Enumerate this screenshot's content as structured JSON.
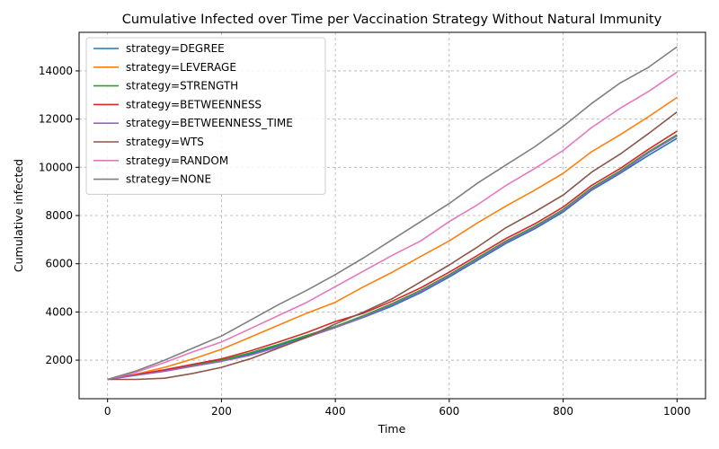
{
  "chart_data": {
    "type": "line",
    "title": "Cumulative Infected over Time per Vaccination Strategy Without Natural Immunity",
    "xlabel": "Time",
    "ylabel": "Cumulative infected",
    "xlim": [
      -50,
      1050
    ],
    "ylim": [
      400,
      15600
    ],
    "xticks": [
      0,
      200,
      400,
      600,
      800,
      1000
    ],
    "yticks": [
      2000,
      4000,
      6000,
      8000,
      10000,
      12000,
      14000
    ],
    "grid": true,
    "legend_position": "top-left",
    "x": [
      0,
      50,
      100,
      150,
      200,
      250,
      300,
      350,
      400,
      450,
      500,
      550,
      600,
      650,
      700,
      750,
      800,
      850,
      900,
      950,
      1000
    ],
    "series": [
      {
        "name": "strategy=DEGREE",
        "color": "#1f77b4",
        "values": [
          1200,
          1380,
          1560,
          1760,
          1960,
          2250,
          2600,
          2980,
          3350,
          3780,
          4250,
          4800,
          5450,
          6150,
          6850,
          7450,
          8150,
          9050,
          9750,
          10500,
          11200
        ]
      },
      {
        "name": "strategy=LEVERAGE",
        "color": "#ff7f0e",
        "values": [
          1200,
          1420,
          1700,
          2050,
          2450,
          2950,
          3450,
          3950,
          4400,
          5050,
          5650,
          6300,
          6950,
          7700,
          8400,
          9050,
          9750,
          10650,
          11350,
          12100,
          12900
        ]
      },
      {
        "name": "strategy=STRENGTH",
        "color": "#2ca02c",
        "values": [
          1200,
          1390,
          1580,
          1800,
          2000,
          2300,
          2650,
          3030,
          3400,
          3850,
          4350,
          4900,
          5550,
          6250,
          6950,
          7550,
          8250,
          9150,
          9850,
          10650,
          11350
        ]
      },
      {
        "name": "strategy=BETWEENNESS",
        "color": "#d62728",
        "values": [
          1200,
          1400,
          1600,
          1830,
          2050,
          2380,
          2750,
          3150,
          3600,
          3950,
          4450,
          5000,
          5650,
          6350,
          7050,
          7650,
          8350,
          9250,
          9950,
          10750,
          11500
        ]
      },
      {
        "name": "strategy=BETWEENNESS_TIME",
        "color": "#9467bd",
        "values": [
          1200,
          1370,
          1540,
          1750,
          1950,
          2200,
          2550,
          2950,
          3350,
          3800,
          4300,
          4850,
          5500,
          6200,
          6900,
          7500,
          8200,
          9100,
          9800,
          10600,
          11300
        ]
      },
      {
        "name": "strategy=WTS",
        "color": "#8c564b",
        "values": [
          1200,
          1200,
          1250,
          1450,
          1700,
          2050,
          2500,
          2950,
          3500,
          4000,
          4550,
          5250,
          5950,
          6700,
          7500,
          8150,
          8850,
          9800,
          10550,
          11400,
          12300
        ]
      },
      {
        "name": "strategy=RANDOM",
        "color": "#e377c2",
        "values": [
          1200,
          1500,
          1900,
          2350,
          2750,
          3300,
          3850,
          4400,
          5050,
          5700,
          6350,
          6950,
          7750,
          8450,
          9250,
          9950,
          10700,
          11650,
          12450,
          13150,
          13950
        ]
      },
      {
        "name": "strategy=NONE",
        "color": "#7f7f7f",
        "values": [
          1200,
          1550,
          2000,
          2500,
          3000,
          3650,
          4300,
          4900,
          5550,
          6250,
          7000,
          7750,
          8500,
          9350,
          10100,
          10850,
          11700,
          12650,
          13500,
          14150,
          15000
        ]
      }
    ]
  }
}
